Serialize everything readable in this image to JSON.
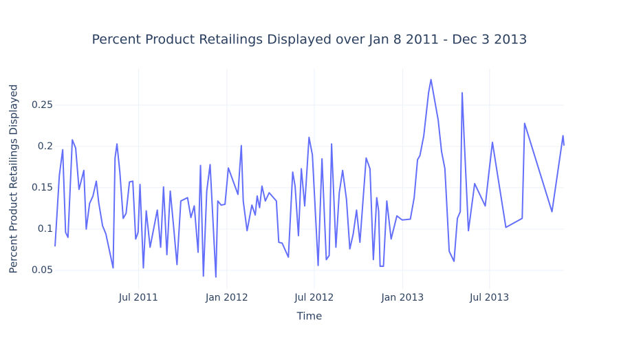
{
  "chart_data": {
    "type": "line",
    "title": "Percent Product Retailings Displayed over Jan 8 2011 - Dec 3 2013",
    "xlabel": "Time",
    "ylabel": "Percent Product Retailings Displayed",
    "color": "#636efa",
    "grid": true,
    "xlim": [
      "2011-01-08",
      "2013-12-03"
    ],
    "xticks": [
      {
        "value": "2011-07-01",
        "label": "Jul 2011"
      },
      {
        "value": "2012-01-01",
        "label": "Jan 2012"
      },
      {
        "value": "2012-07-01",
        "label": "Jul 2012"
      },
      {
        "value": "2013-01-01",
        "label": "Jan 2013"
      },
      {
        "value": "2013-07-01",
        "label": "Jul 2013"
      }
    ],
    "ylim": [
      0.0275,
      0.294
    ],
    "yticks": [
      0.05,
      0.1,
      0.15,
      0.2,
      0.25
    ],
    "x": [
      "2011-01-08",
      "2011-01-17",
      "2011-01-24",
      "2011-01-30",
      "2011-02-04",
      "2011-02-13",
      "2011-02-20",
      "2011-02-27",
      "2011-03-09",
      "2011-03-14",
      "2011-03-21",
      "2011-03-28",
      "2011-04-04",
      "2011-04-09",
      "2011-04-17",
      "2011-04-24",
      "2011-05-09",
      "2011-05-13",
      "2011-05-17",
      "2011-05-23",
      "2011-05-30",
      "2011-06-05",
      "2011-06-12",
      "2011-06-19",
      "2011-06-25",
      "2011-06-30",
      "2011-07-04",
      "2011-07-11",
      "2011-07-17",
      "2011-07-25",
      "2011-08-09",
      "2011-08-16",
      "2011-08-22",
      "2011-08-29",
      "2011-09-05",
      "2011-09-12",
      "2011-09-19",
      "2011-09-27",
      "2011-10-11",
      "2011-10-18",
      "2011-10-25",
      "2011-11-02",
      "2011-11-07",
      "2011-11-13",
      "2011-11-20",
      "2011-11-27",
      "2011-12-09",
      "2011-12-13",
      "2011-12-20",
      "2011-12-28",
      "2012-01-04",
      "2012-01-24",
      "2012-01-31",
      "2012-02-04",
      "2012-02-12",
      "2012-02-22",
      "2012-02-29",
      "2012-03-04",
      "2012-03-09",
      "2012-03-14",
      "2012-03-21",
      "2012-03-29",
      "2012-04-13",
      "2012-04-18",
      "2012-04-25",
      "2012-05-08",
      "2012-05-17",
      "2012-05-22",
      "2012-05-29",
      "2012-06-04",
      "2012-06-11",
      "2012-06-20",
      "2012-06-27",
      "2012-07-09",
      "2012-07-17",
      "2012-07-26",
      "2012-08-01",
      "2012-08-06",
      "2012-08-15",
      "2012-08-22",
      "2012-08-29",
      "2012-09-06",
      "2012-09-13",
      "2012-09-20",
      "2012-09-27",
      "2012-10-04",
      "2012-10-17",
      "2012-10-25",
      "2012-11-01",
      "2012-11-08",
      "2012-11-12",
      "2012-11-15",
      "2012-11-22",
      "2012-11-29",
      "2012-12-08",
      "2012-12-20",
      "2012-12-31",
      "2013-01-17",
      "2013-01-25",
      "2013-02-01",
      "2013-02-06",
      "2013-02-14",
      "2013-02-24",
      "2013-03-01",
      "2013-03-16",
      "2013-03-23",
      "2013-03-30",
      "2013-04-08",
      "2013-04-18",
      "2013-04-25",
      "2013-05-01",
      "2013-05-05",
      "2013-05-09",
      "2013-05-18",
      "2013-05-31",
      "2013-06-22",
      "2013-06-29",
      "2013-07-07",
      "2013-08-04",
      "2013-09-07",
      "2013-09-12",
      "2013-11-08",
      "2013-12-01",
      "2013-12-03"
    ],
    "values": [
      0.079,
      0.165,
      0.196,
      0.096,
      0.09,
      0.208,
      0.198,
      0.148,
      0.171,
      0.1,
      0.131,
      0.14,
      0.158,
      0.132,
      0.104,
      0.094,
      0.053,
      0.186,
      0.203,
      0.169,
      0.113,
      0.119,
      0.157,
      0.158,
      0.088,
      0.096,
      0.154,
      0.053,
      0.122,
      0.078,
      0.123,
      0.078,
      0.151,
      0.069,
      0.146,
      0.103,
      0.057,
      0.134,
      0.138,
      0.114,
      0.128,
      0.072,
      0.177,
      0.043,
      0.146,
      0.178,
      0.042,
      0.134,
      0.129,
      0.13,
      0.174,
      0.142,
      0.201,
      0.134,
      0.098,
      0.129,
      0.117,
      0.14,
      0.126,
      0.152,
      0.134,
      0.144,
      0.134,
      0.084,
      0.083,
      0.066,
      0.169,
      0.152,
      0.092,
      0.173,
      0.128,
      0.211,
      0.19,
      0.056,
      0.185,
      0.063,
      0.068,
      0.203,
      0.078,
      0.144,
      0.171,
      0.136,
      0.076,
      0.094,
      0.123,
      0.084,
      0.186,
      0.173,
      0.063,
      0.138,
      0.122,
      0.055,
      0.055,
      0.134,
      0.088,
      0.116,
      0.111,
      0.112,
      0.138,
      0.184,
      0.189,
      0.213,
      0.265,
      0.281,
      0.232,
      0.194,
      0.173,
      0.073,
      0.061,
      0.113,
      0.121,
      0.265,
      0.211,
      0.098,
      0.155,
      0.128,
      0.165,
      0.205,
      0.102,
      0.113,
      0.228,
      0.121,
      0.213,
      0.201
    ]
  }
}
